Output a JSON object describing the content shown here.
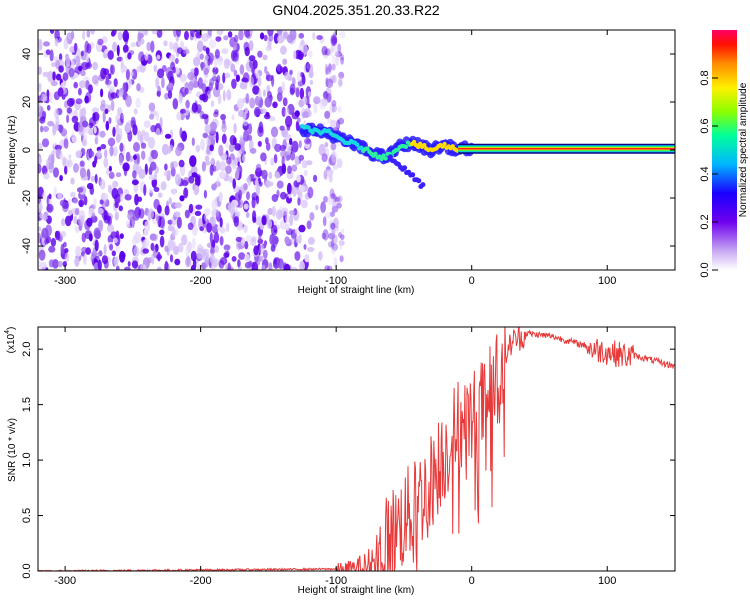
{
  "figure": {
    "title": "GN04.2025.351.20.33.R22"
  },
  "chart_data": [
    {
      "type": "heatmap",
      "name": "spectrogram",
      "title": "GN04.2025.351.20.33.R22",
      "xlabel": "Height of straight line (km)",
      "ylabel": "Frequency (Hz)",
      "xlim": [
        -320,
        150
      ],
      "ylim": [
        -50,
        50
      ],
      "x_ticks": [
        -300,
        -200,
        -100,
        0,
        100
      ],
      "y_ticks": [
        -40,
        -20,
        0,
        20,
        40
      ],
      "colorbar": {
        "label": "Normalized spectral amplitude",
        "ticks": [
          0.0,
          0.2,
          0.4,
          0.6,
          0.8
        ],
        "range": [
          0,
          1
        ]
      },
      "ridge": {
        "description": "dominant frequency trace",
        "x": [
          -125,
          -115,
          -105,
          -95,
          -85,
          -75,
          -65,
          -60,
          -55,
          -50,
          -45,
          -40,
          -35,
          -30,
          -25,
          -20,
          -15,
          -10,
          -5,
          0,
          50,
          100,
          150
        ],
        "y": [
          9,
          8,
          7,
          4,
          2,
          -1,
          -3,
          -2,
          1,
          2,
          3,
          2,
          1,
          0,
          1,
          2,
          1,
          0,
          0.5,
          0.5,
          0.5,
          0.5,
          0.5
        ]
      },
      "noise_region_x": [
        -320,
        -95
      ]
    },
    {
      "type": "line",
      "name": "snr",
      "xlabel": "Height of straight line (km)",
      "ylabel": "SNR (10 * v/v)",
      "scale_label": "(x10",
      "scale_exponent": "4",
      "xlim": [
        -320,
        150
      ],
      "ylim": [
        0,
        2.2
      ],
      "x_ticks": [
        -300,
        -200,
        -100,
        0,
        100
      ],
      "y_ticks": [
        0.0,
        0.5,
        1.0,
        1.5,
        2.0
      ],
      "y_tick_labels": [
        "0.0",
        "0.5",
        "1.0",
        "1.5",
        "2.0"
      ],
      "series": [
        {
          "name": "SNR",
          "color": "#e83a3a",
          "x": [
            -320,
            -100,
            -90,
            -80,
            -70,
            -60,
            -50,
            -40,
            -30,
            -20,
            -10,
            0,
            10,
            20,
            30,
            40,
            60,
            80,
            100,
            120,
            150
          ],
          "y": [
            0.0,
            0.02,
            0.02,
            0.05,
            0.15,
            0.4,
            0.55,
            0.7,
            0.9,
            1.15,
            1.4,
            1.45,
            1.6,
            1.85,
            2.1,
            2.15,
            2.12,
            2.05,
            2.0,
            1.95,
            1.85
          ]
        }
      ]
    }
  ]
}
